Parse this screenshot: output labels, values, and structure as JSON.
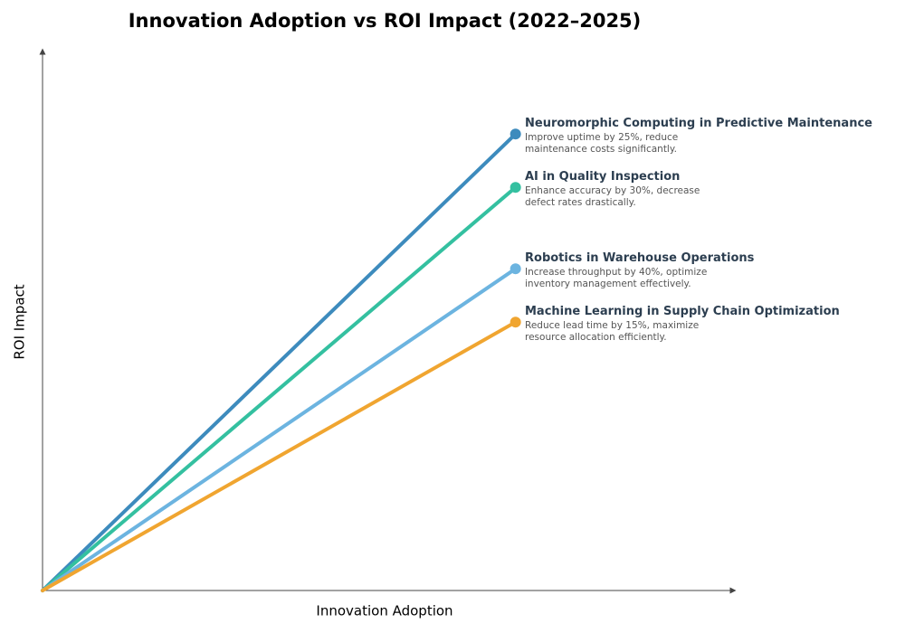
{
  "chart_data": {
    "type": "line",
    "title": "Innovation Adoption vs ROI Impact (2022–2025)",
    "x_label": "Innovation Adoption",
    "y_label": "ROI Impact",
    "xlim": [
      0,
      100
    ],
    "ylim": [
      0,
      100
    ],
    "x": [
      0,
      68.5
    ],
    "series": [
      {
        "name": "Neuromorphic Computing in Predictive Maintenance",
        "color": "#3d8bbd",
        "values": [
          0,
          84.7
        ],
        "description": "Improve uptime by 25%, reduce maintenance costs significantly."
      },
      {
        "name": "AI in Quality Inspection",
        "color": "#34c0a0",
        "values": [
          0,
          74.8
        ],
        "description": "Enhance accuracy by 30%, decrease defect rates drastically."
      },
      {
        "name": "Robotics in Warehouse Operations",
        "color": "#6cb4e0",
        "values": [
          0,
          59.7
        ],
        "description": "Increase throughput by 40%, optimize inventory management effectively."
      },
      {
        "name": "Machine Learning in Supply Chain Optimization",
        "color": "#f0a530",
        "values": [
          0,
          49.8
        ],
        "description": "Reduce lead time by 15%, maximize resource allocation efficiently."
      }
    ]
  }
}
